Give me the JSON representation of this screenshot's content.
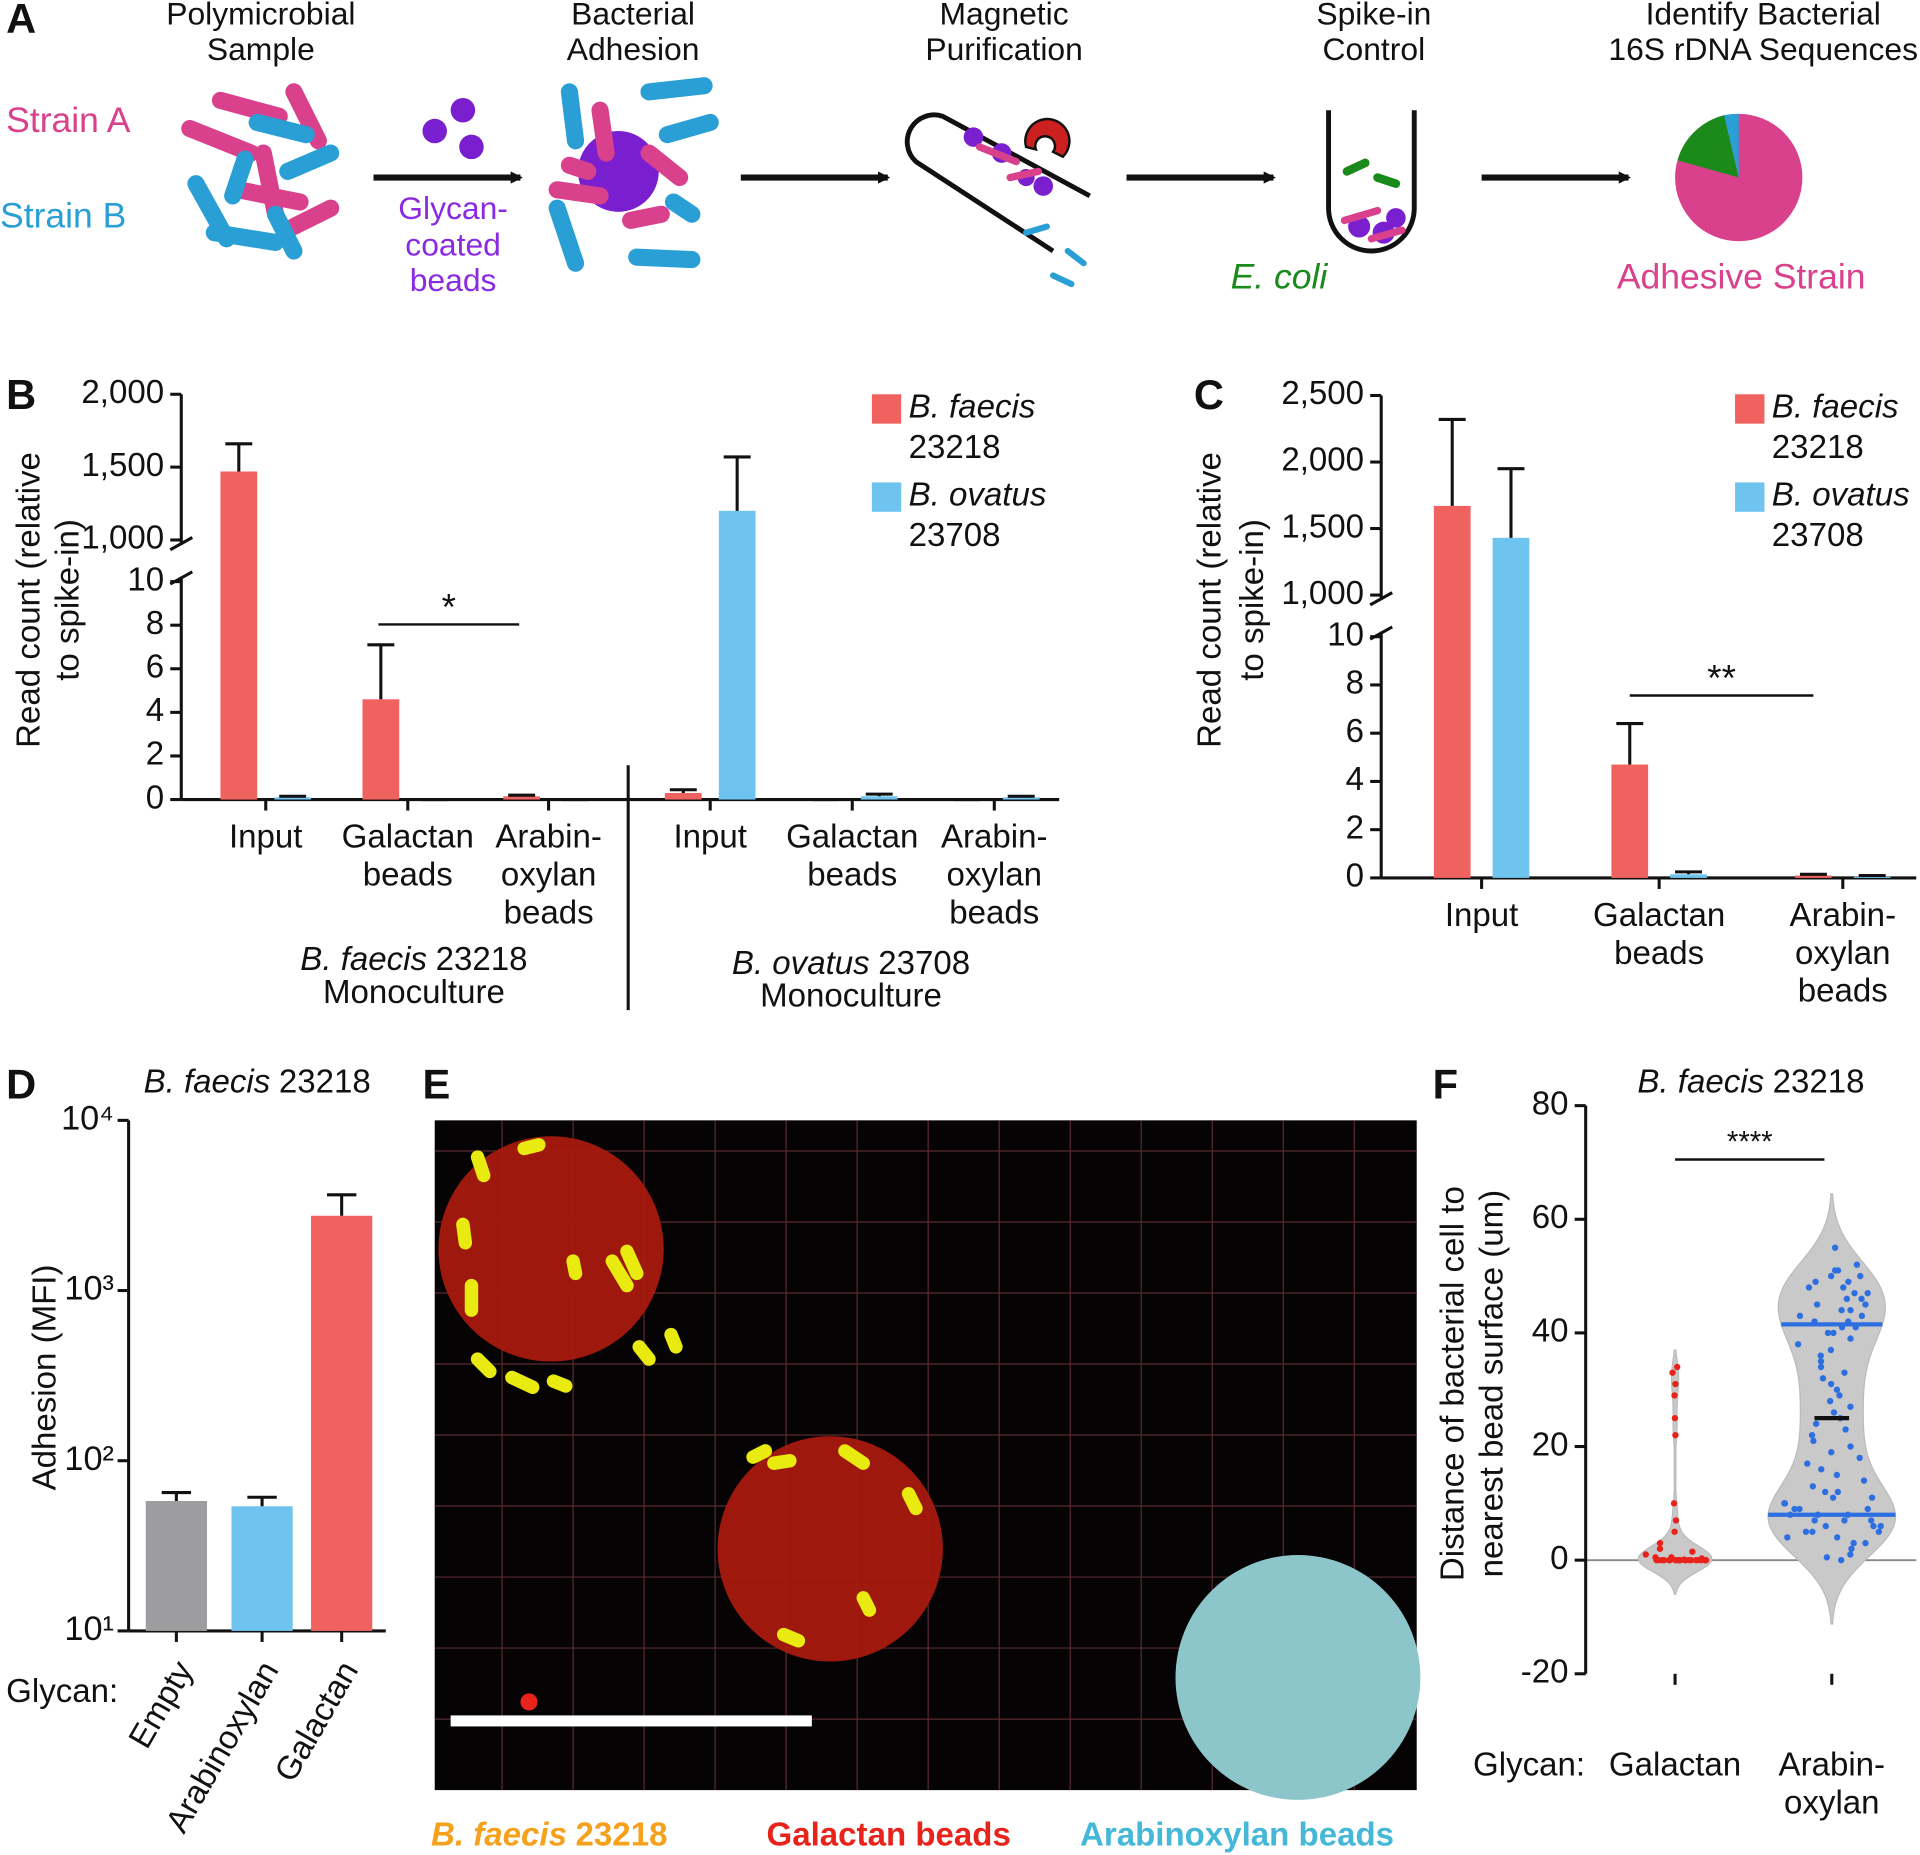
{
  "panel_labels": [
    "A",
    "B",
    "C",
    "D",
    "E",
    "F"
  ],
  "schematic": {
    "steps": [
      [
        "Polymicrobial",
        "Sample"
      ],
      [
        "Bacterial",
        "Adhesion"
      ],
      [
        "Magnetic",
        "Purification"
      ],
      [
        "Spike-in",
        "Control"
      ],
      [
        "Identify Bacterial",
        "16S rDNA Sequences"
      ]
    ],
    "strain_a": "Strain A",
    "strain_b": "Strain B",
    "beads": [
      "Glycan-",
      "coated",
      "beads"
    ],
    "spike": "E. coli",
    "result": "Adhesive Strain"
  },
  "micrograph": {
    "legend": [
      {
        "runs": [
          "B. faecis",
          "23218"
        ],
        "color": "#f5a11c"
      },
      {
        "runs": [
          "Galactan beads"
        ],
        "color": "#e8231b"
      },
      {
        "runs": [
          "Arabinoxylan beads"
        ],
        "color": "#45b8d8"
      }
    ]
  },
  "chart_data": [
    {
      "type": "bar",
      "ylabel": [
        "Read count (relative",
        "to spike-in)"
      ],
      "categories": [
        [
          "Input"
        ],
        [
          "Galactan",
          "beads"
        ],
        [
          "Arabin-",
          "oxylan",
          "beads"
        ],
        [
          "Input"
        ],
        [
          "Galactan",
          "beads"
        ],
        [
          "Arabin-",
          "oxylan",
          "beads"
        ]
      ],
      "groups": [
        {
          "runs": [
            "B. faecis",
            "23218"
          ],
          "sub": "Monoculture"
        },
        {
          "runs": [
            "B. ovatus",
            "23708"
          ],
          "sub": "Monoculture"
        }
      ],
      "series": [
        {
          "name": "B. faecis 23218",
          "color": "#f0625f",
          "values": [
            1470,
            4.6,
            0.15,
            0.3,
            0,
            0
          ],
          "errors": [
            190,
            2.5,
            0.05,
            0.15,
            0,
            0
          ]
        },
        {
          "name": "B. ovatus 23708",
          "color": "#6ec3ef",
          "values": [
            0.1,
            0,
            0,
            1200,
            0.15,
            0.1
          ],
          "errors": [
            0.05,
            0,
            0,
            370,
            0.1,
            0.05
          ]
        }
      ],
      "ylim": [
        0,
        2000
      ],
      "ybreak": [
        10,
        1000
      ],
      "yticks": [
        0,
        2,
        4,
        6,
        8,
        10,
        {
          "value": 1000,
          "label": "1,000"
        },
        {
          "value": 1500,
          "label": "1,500"
        },
        {
          "value": 2000,
          "label": "2,000"
        }
      ],
      "significance": [
        {
          "from": 1,
          "to": 2,
          "label": "*"
        }
      ]
    },
    {
      "type": "bar",
      "ylabel": [
        "Read count (relative",
        "to spike-in)"
      ],
      "categories": [
        [
          "Input"
        ],
        [
          "Galactan",
          "beads"
        ],
        [
          "Arabin-",
          "oxylan",
          "beads"
        ]
      ],
      "series": [
        {
          "name": "B. faecis 23218",
          "color": "#f0625f",
          "values": [
            1670,
            4.7,
            0.1
          ],
          "errors": [
            650,
            1.7,
            0.05
          ]
        },
        {
          "name": "B. ovatus 23708",
          "color": "#6ec3ef",
          "values": [
            1430,
            0.15,
            0.05
          ],
          "errors": [
            520,
            0.1,
            0.05
          ]
        }
      ],
      "ylim": [
        0,
        2500
      ],
      "ybreak": [
        10,
        1000
      ],
      "yticks": [
        0,
        2,
        4,
        6,
        8,
        10,
        {
          "value": 1000,
          "label": "1,000"
        },
        {
          "value": 1500,
          "label": "1,500"
        },
        {
          "value": 2000,
          "label": "2,000"
        },
        {
          "value": 2500,
          "label": "2,500"
        }
      ],
      "significance": [
        {
          "from": 1,
          "to": 2,
          "label": "**"
        }
      ]
    },
    {
      "type": "logbar",
      "title": [
        "B. faecis",
        "23218"
      ],
      "ylabel": "Adhesion (MFI)",
      "xlabel": "Glycan:",
      "categories": [
        "Empty",
        "Arabinoxylan",
        "Galactan"
      ],
      "colors": [
        "#9d9d9f",
        "#6ec3ef",
        "#f0625f"
      ],
      "values": [
        58,
        54,
        2750
      ],
      "errors": [
        7,
        7,
        900
      ],
      "log": true,
      "ylim": [
        10,
        10000
      ],
      "yticks": [
        {
          "value": 10,
          "label": "10¹"
        },
        {
          "value": 100,
          "label": "10²"
        },
        {
          "value": 1000,
          "label": "10³"
        },
        {
          "value": 10000,
          "label": "10⁴"
        }
      ]
    },
    {
      "type": "violin",
      "title": [
        "B. faecis",
        "23218"
      ],
      "ylabel": [
        "Distance of bacterial cell to",
        "nearest bead surface (um)"
      ],
      "xlabel": "Glycan:",
      "categories": [
        [
          "Galactan"
        ],
        [
          "Arabin-",
          "oxylan"
        ]
      ],
      "series": [
        {
          "color": "#e8231b",
          "values": [
            34,
            33,
            31,
            29,
            25,
            22,
            10,
            7,
            5,
            3,
            2,
            1.5,
            1,
            0.5,
            0.5,
            0.3,
            0.2,
            0.1,
            0,
            0,
            0,
            0,
            0,
            0,
            0,
            0,
            0,
            0,
            0,
            0,
            0,
            0,
            0,
            0,
            0,
            0,
            0,
            0,
            0,
            0
          ]
        },
        {
          "color": "#2d6fe0",
          "values": [
            55,
            52,
            51,
            51,
            50,
            50,
            49,
            49,
            48,
            48,
            47,
            47,
            46,
            46,
            45,
            45,
            44,
            44,
            43,
            43,
            42,
            42,
            41,
            41,
            40,
            40,
            39,
            38,
            37,
            36,
            35,
            34,
            33,
            32,
            31,
            30,
            29,
            28,
            27,
            26,
            25,
            24,
            23,
            22,
            21,
            20,
            19,
            18,
            17,
            16,
            15,
            14,
            13,
            12,
            12,
            11,
            11,
            10,
            10,
            9,
            9,
            9,
            8,
            8,
            8,
            7,
            7,
            7,
            6,
            6,
            6,
            5,
            5,
            5,
            4,
            4,
            3,
            3,
            2,
            1,
            0.5,
            0
          ],
          "quartiles": [
            8,
            25,
            41.5
          ]
        }
      ],
      "ylim": [
        -20,
        80
      ],
      "yticks": [
        -20,
        0,
        20,
        40,
        60,
        80
      ],
      "significance": [
        {
          "from": 0,
          "to": 1,
          "label": "****"
        }
      ]
    }
  ]
}
